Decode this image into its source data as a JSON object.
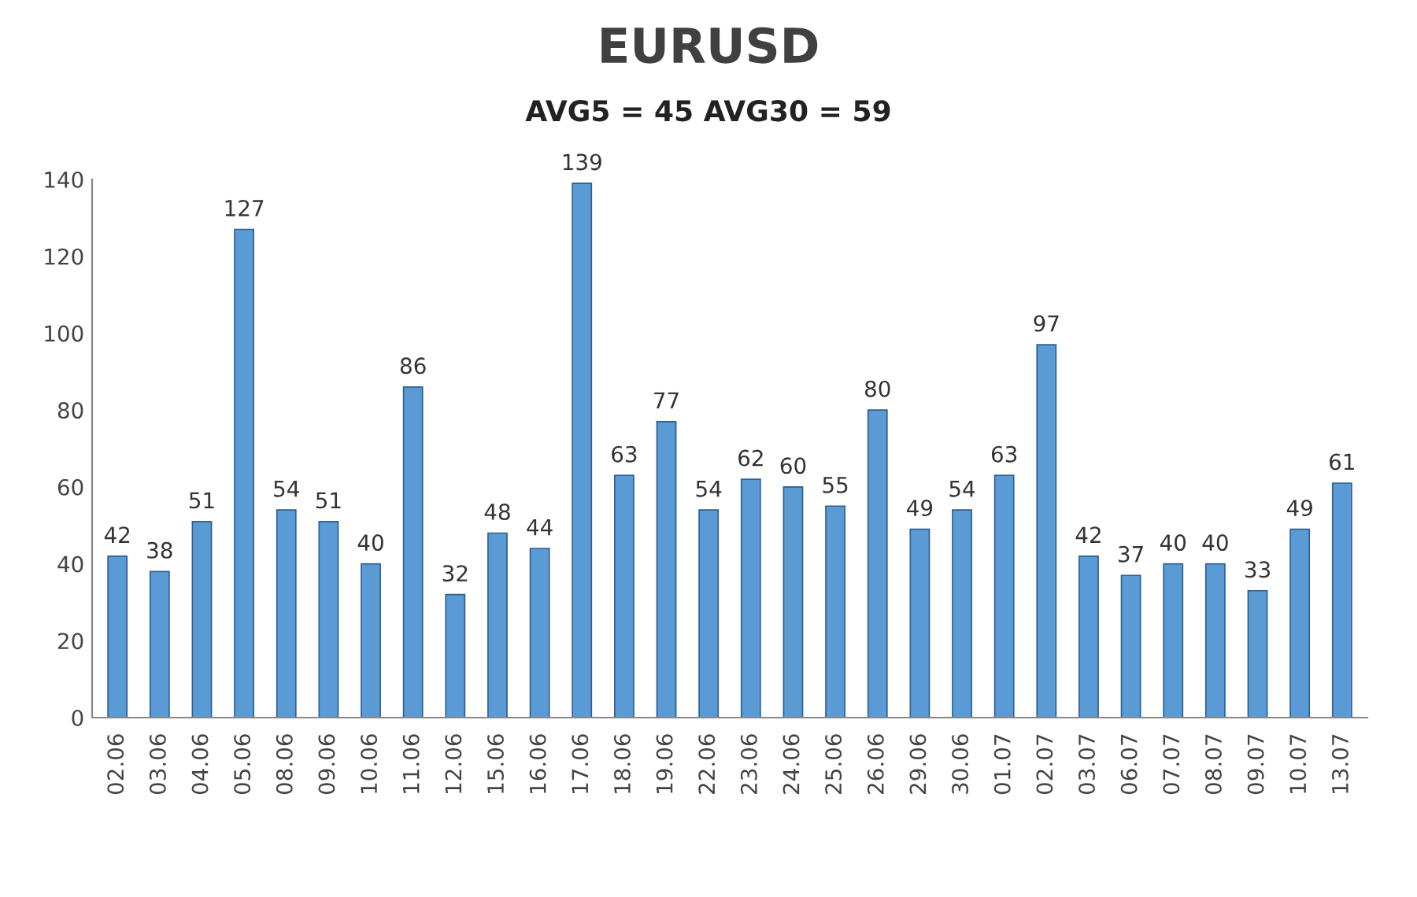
{
  "chart_data": {
    "type": "bar",
    "title": "EURUSD",
    "subtitle": "AVG5 = 45 AVG30 = 59",
    "categories": [
      "02.06",
      "03.06",
      "04.06",
      "05.06",
      "08.06",
      "09.06",
      "10.06",
      "11.06",
      "12.06",
      "15.06",
      "16.06",
      "17.06",
      "18.06",
      "19.06",
      "22.06",
      "23.06",
      "24.06",
      "25.06",
      "26.06",
      "29.06",
      "30.06",
      "01.07",
      "02.07",
      "03.07",
      "06.07",
      "07.07",
      "08.07",
      "09.07",
      "10.07",
      "13.07"
    ],
    "values": [
      42,
      38,
      51,
      127,
      54,
      51,
      40,
      86,
      32,
      48,
      44,
      139,
      63,
      77,
      54,
      62,
      60,
      55,
      80,
      49,
      54,
      63,
      97,
      42,
      37,
      40,
      40,
      33,
      49,
      61
    ],
    "color": "#5b9bd5",
    "ylim": [
      0,
      140
    ],
    "yticks": [
      0,
      20,
      40,
      60,
      80,
      100,
      120,
      140
    ],
    "grid": false,
    "data_labels": true
  }
}
